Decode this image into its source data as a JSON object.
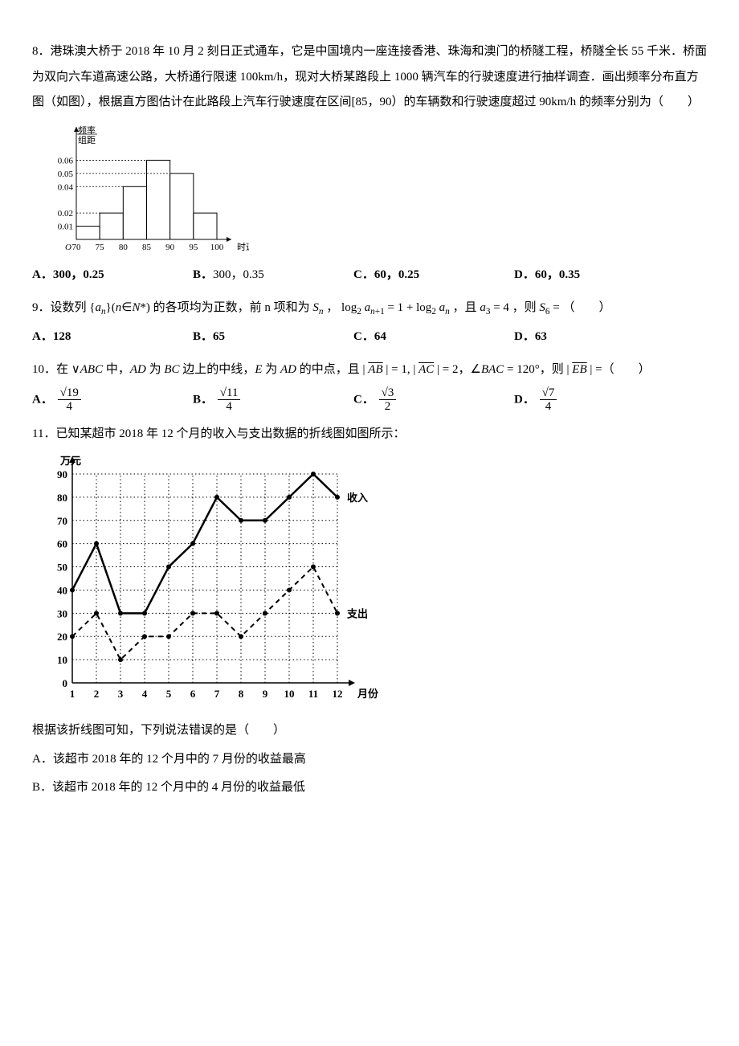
{
  "q8": {
    "text": "8．港珠澳大桥于 2018 年 10 月 2 刻日正式通车，它是中国境内一座连接香港、珠海和澳门的桥隧工程，桥隧全长 55 千米．桥面为双向六车道高速公路，大桥通行限速 100km/h，现对大桥某路段上 1000 辆汽车的行驶速度进行抽样调查．画出频率分布直方图（如图），根据直方图估计在此路段上汽车行驶速度在区间[85，90）的车辆数和行驶速度超过 90km/h 的频率分别为（　　）",
    "chart": {
      "type": "histogram",
      "ylabel_top": "频率",
      "ylabel_bottom": "组距",
      "xlabel": "时速(km/h)",
      "xticks": [
        70,
        75,
        80,
        85,
        90,
        95,
        100
      ],
      "yticks": [
        0.01,
        0.02,
        0.04,
        0.05,
        0.06
      ],
      "bars": [
        {
          "x0": 70,
          "x1": 75,
          "h": 0.01
        },
        {
          "x0": 75,
          "x1": 80,
          "h": 0.02
        },
        {
          "x0": 80,
          "x1": 85,
          "h": 0.04
        },
        {
          "x0": 85,
          "x1": 90,
          "h": 0.06
        },
        {
          "x0": 90,
          "x1": 95,
          "h": 0.05
        },
        {
          "x0": 95,
          "x1": 100,
          "h": 0.02
        }
      ],
      "colors": {
        "bar_fill": "#ffffff",
        "bar_stroke": "#000000",
        "axis": "#000000",
        "dash": "#000000"
      },
      "font_size": 11
    },
    "options": {
      "A": "300，0.25",
      "B": "300，0.35",
      "C": "60，0.25",
      "D": "60，0.35"
    }
  },
  "q9": {
    "text_pre": "9．设数列",
    "set": "{aₙ}(n∈N*)",
    "text_mid1": "的各项均为正数，前 n 项和为",
    "sn": "Sₙ",
    "text_mid2": "，",
    "eq1": "log₂ aₙ₊₁ = 1 + log₂ aₙ",
    "text_mid3": "，且",
    "eq2": "a₃ = 4",
    "text_mid4": "，则",
    "eq3": "S₆ =",
    "text_end": "（　　）",
    "options": {
      "A": "128",
      "B": "65",
      "C": "64",
      "D": "63"
    }
  },
  "q10": {
    "text": "10．在 ∨ABC 中，AD 为 BC 边上的中线，E 为 AD 的中点，且 | AB⃗ | = 1, | AC⃗ | = 2，∠BAC = 120°，则 | EB⃗ | =（　　）",
    "options": {
      "A": {
        "num": "√19",
        "den": "4"
      },
      "B": {
        "num": "√11",
        "den": "4"
      },
      "C": {
        "num": "√3",
        "den": "2"
      },
      "D": {
        "num": "√7",
        "den": "4"
      }
    }
  },
  "q11": {
    "text": "11．已知某超市 2018 年 12 个月的收入与支出数据的折线图如图所示：",
    "chart": {
      "type": "line",
      "ylabel": "万元",
      "xlabel": "月份",
      "xticks": [
        1,
        2,
        3,
        4,
        5,
        6,
        7,
        8,
        9,
        10,
        11,
        12
      ],
      "yticks": [
        0,
        10,
        20,
        30,
        40,
        50,
        60,
        70,
        80,
        90
      ],
      "series": [
        {
          "name": "收入",
          "label": "收入",
          "dash": false,
          "data": [
            40,
            60,
            30,
            30,
            50,
            60,
            80,
            70,
            70,
            80,
            90,
            80
          ]
        },
        {
          "name": "支出",
          "label": "支出",
          "dash": true,
          "data": [
            20,
            30,
            10,
            20,
            20,
            30,
            30,
            20,
            30,
            40,
            50,
            30
          ]
        }
      ],
      "colors": {
        "line": "#000000",
        "grid": "#000000",
        "axis": "#000000",
        "bg": "#ffffff"
      },
      "line_width_income": 2.5,
      "line_width_expense": 2,
      "font_size": 13
    },
    "follow": "根据该折线图可知，下列说法错误的是（　　）",
    "optA": "A．该超市 2018 年的 12 个月中的 7 月份的收益最高",
    "optB": "B．该超市 2018 年的 12 个月中的 4 月份的收益最低"
  }
}
